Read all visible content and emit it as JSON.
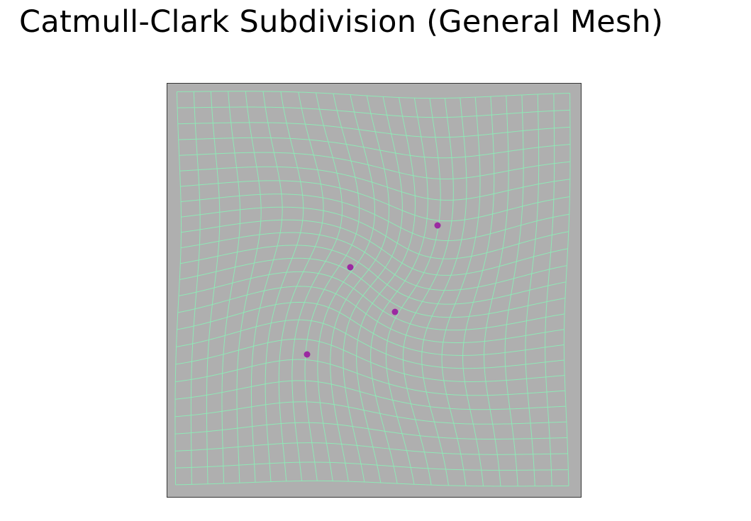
{
  "title": "Catmull-Clark Subdivision (General Mesh)",
  "colors": {
    "background": "#afafaf",
    "mesh_lines": "#8fe8b6",
    "extraordinary_vertices": "#9b2aa1",
    "frame_border": "#333333"
  },
  "mesh": {
    "cells_per_side": 24,
    "extraordinary_vertex_count": 4
  }
}
